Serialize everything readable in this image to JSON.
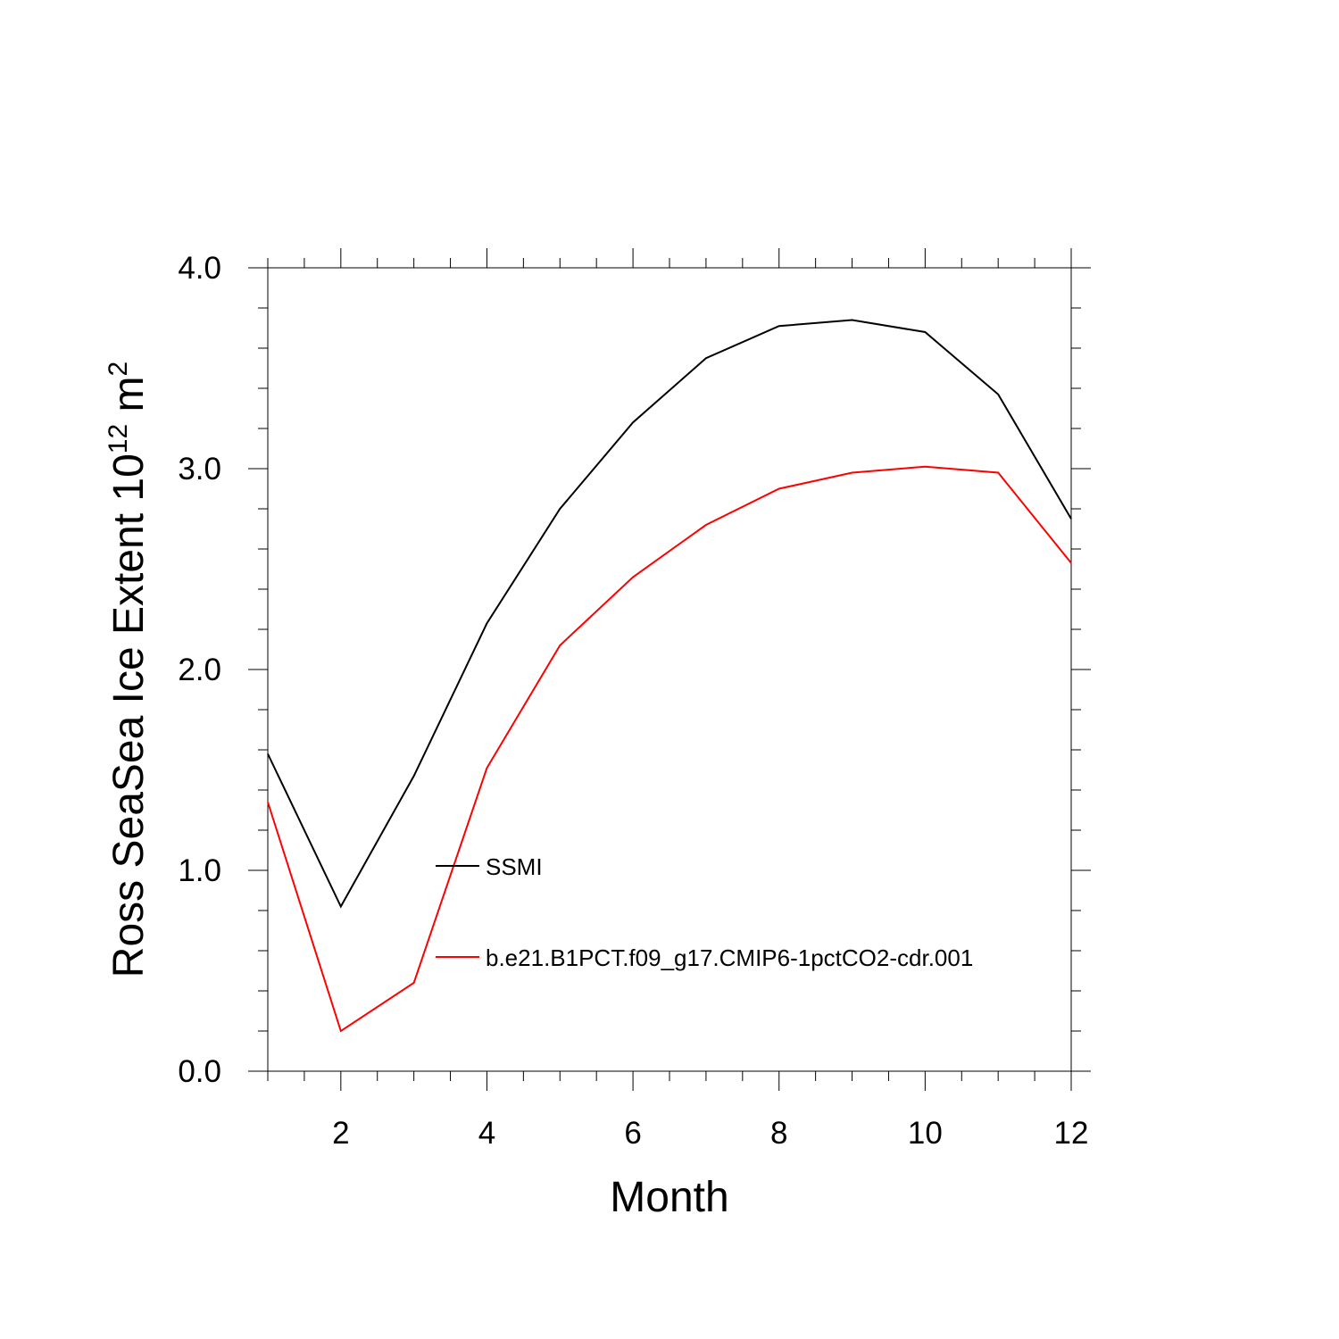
{
  "chart_data": {
    "type": "line",
    "title": "",
    "xlabel": "Month",
    "ylabel": {
      "main": "Ross SeaSea Ice Extent 10",
      "sup1": "12",
      "unit": " m",
      "sup2": "2"
    },
    "xlim": [
      1,
      12
    ],
    "ylim": [
      0,
      4
    ],
    "x_ticks": [
      2,
      4,
      6,
      8,
      10,
      12
    ],
    "x_tick_labels": [
      "2",
      "4",
      "6",
      "8",
      "10",
      "12"
    ],
    "y_ticks": [
      0,
      1,
      2,
      3,
      4
    ],
    "y_tick_labels": [
      "0.0",
      "1.0",
      "2.0",
      "3.0",
      "4.0"
    ],
    "x": [
      1,
      2,
      3,
      4,
      5,
      6,
      7,
      8,
      9,
      10,
      11,
      12
    ],
    "series": [
      {
        "name": "SSMI",
        "color": "#000000",
        "values": [
          1.58,
          0.82,
          1.47,
          2.23,
          2.8,
          3.23,
          3.55,
          3.71,
          3.74,
          3.68,
          3.37,
          2.75
        ]
      },
      {
        "name": "b.e21.B1PCT.f09_g17.CMIP6-1pctCO2-cdr.001",
        "color": "#ff0000",
        "values": [
          1.34,
          0.2,
          0.44,
          1.51,
          2.12,
          2.46,
          2.72,
          2.9,
          2.98,
          3.01,
          2.98,
          2.53
        ]
      }
    ],
    "grid": false,
    "legend_position": "lower-center"
  }
}
